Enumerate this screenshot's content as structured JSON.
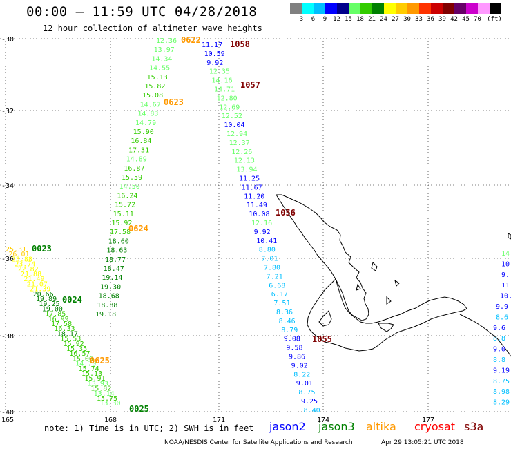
{
  "header": {
    "title": "00:00 — 11:59 UTC 04/28/2018",
    "subtitle": "12 hour collection of altimeter wave heights"
  },
  "legend": {
    "unit": "(ft)",
    "colors": [
      "#808080",
      "#00ffff",
      "#00bfff",
      "#0000ff",
      "#00008b",
      "#66ff66",
      "#33cc00",
      "#008000",
      "#ffff00",
      "#ffcc00",
      "#ff9900",
      "#ff3300",
      "#cc0000",
      "#800000",
      "#660066",
      "#cc00cc",
      "#ff99ff",
      "#000000"
    ],
    "labels": [
      "3",
      "6",
      "9",
      "12",
      "15",
      "18",
      "21",
      "24",
      "27",
      "30",
      "33",
      "36",
      "39",
      "42",
      "45",
      "70"
    ]
  },
  "axes": {
    "lat_labels": [
      "-30",
      "-32",
      "-34",
      "-36",
      "-38",
      "-40"
    ],
    "lon_labels": [
      "165",
      "168",
      "171",
      "174",
      "177"
    ]
  },
  "passes": [
    {
      "id": "0622",
      "color": "#ff9900"
    },
    {
      "id": "0623",
      "color": "#ff9900"
    },
    {
      "id": "0624",
      "color": "#ff9900"
    },
    {
      "id": "0625",
      "color": "#ff9900"
    },
    {
      "id": "0023",
      "color": "#008000"
    },
    {
      "id": "0024",
      "color": "#008000"
    },
    {
      "id": "0025",
      "color": "#008000"
    },
    {
      "id": "1058",
      "color": "#800000"
    },
    {
      "id": "1057",
      "color": "#800000"
    },
    {
      "id": "1056",
      "color": "#800000"
    },
    {
      "id": "1055",
      "color": "#800000"
    }
  ],
  "tracks": {
    "altika_0622": [
      "12.36",
      "13.97",
      "14.34",
      "14.55",
      "15.13",
      "15.82",
      "15.08",
      "14.67",
      "14.83",
      "14.79",
      "15.90",
      "16.84",
      "17.31",
      "14.89",
      "16.87",
      "15.59",
      "14.50",
      "16.24",
      "15.72",
      "15.11",
      "15.92",
      "17.58",
      "18.60",
      "18.63",
      "18.77",
      "18.47",
      "19.14",
      "19.30",
      "18.68",
      "18.88",
      "19.18"
    ],
    "jason2_1058": [
      "11.17",
      "10.59",
      "9.92",
      "12.35",
      "14.16",
      "14.71",
      "12.80",
      "12.69",
      "12.52",
      "10.04",
      "12.94",
      "12.37",
      "12.26",
      "12.13",
      "13.94",
      "11.25",
      "11.67",
      "11.20",
      "11.49",
      "10.08",
      "12.16",
      "9.92",
      "10.41",
      "8.80",
      "7.01",
      "7.80",
      "7.21",
      "6.68",
      "6.17",
      "7.51",
      "8.36",
      "8.46",
      "8.79",
      "9.08",
      "9.58",
      "9.86",
      "9.02",
      "8.22",
      "9.01",
      "8.75",
      "9.25",
      "8.40"
    ],
    "jason3_0023": [
      "25.31",
      "26.01",
      "23.88",
      "23.74",
      "22.82",
      "21.88",
      "21.49",
      "21.07",
      "21.39",
      "20.66",
      "19.89",
      "19.25",
      "19.00",
      "17.85",
      "16.99",
      "17.58",
      "16.33",
      "18.17",
      "15.53",
      "15.92",
      "15.35",
      "16.57",
      "15.06",
      "14.70",
      "15.74",
      "15.13",
      "15.91",
      "13.93",
      "15.82",
      "13.14",
      "15.75",
      "13.30"
    ],
    "east_track": [
      "14",
      "10",
      "9.",
      "11.",
      "10.",
      "9.9",
      "8.6",
      "9.6",
      "8.8",
      "9.0",
      "8.8",
      "9.19",
      "8.75",
      "8.98",
      "8.29"
    ]
  },
  "notes": {
    "note": "note: 1) Time is in UTC; 2) SWH is in feet",
    "sat_jason2": "jason2",
    "sat_jason3": "jason3",
    "sat_altika": "altika",
    "sat_cryosat": "cryosat",
    "sat_s3a": "s3a",
    "footer": "NOAA/NESDIS Center for Satellite Applications and Research",
    "timestamp": "Apr 29 13:05:21 UTC 2018"
  }
}
